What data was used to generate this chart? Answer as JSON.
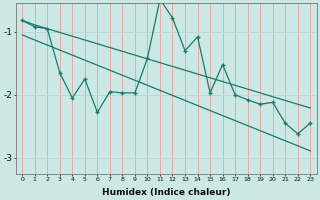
{
  "x": [
    0,
    1,
    2,
    3,
    4,
    5,
    6,
    7,
    8,
    9,
    10,
    11,
    12,
    13,
    14,
    15,
    16,
    17,
    18,
    19,
    20,
    21,
    22,
    23
  ],
  "y_main": [
    -0.82,
    -0.92,
    -0.95,
    -1.65,
    -2.05,
    -1.75,
    -2.28,
    -1.95,
    -1.97,
    -1.97,
    -1.42,
    -0.48,
    -0.78,
    -1.3,
    -1.08,
    -1.97,
    -1.52,
    -2.0,
    -2.08,
    -2.15,
    -2.12,
    -2.45,
    -2.62,
    -2.45
  ],
  "y_line1": [
    -0.82,
    -0.89,
    -0.95,
    -1.01,
    -1.07,
    -1.13,
    -1.19,
    -1.25,
    -1.31,
    -1.37,
    -1.43,
    -1.49,
    -1.55,
    -1.61,
    -1.67,
    -1.73,
    -1.79,
    -1.85,
    -1.91,
    -1.97,
    -2.03,
    -2.09,
    -2.15,
    -2.21
  ],
  "y_line2": [
    -1.05,
    -1.13,
    -1.21,
    -1.29,
    -1.37,
    -1.45,
    -1.53,
    -1.61,
    -1.69,
    -1.77,
    -1.85,
    -1.93,
    -2.01,
    -2.09,
    -2.17,
    -2.25,
    -2.33,
    -2.41,
    -2.49,
    -2.57,
    -2.65,
    -2.73,
    -2.81,
    -2.89
  ],
  "color": "#1a7a6e",
  "bg_color": "#cce8e4",
  "grid_color_v": "#e8a0a0",
  "grid_color_h": "#b8d8d4",
  "xlabel": "Humidex (Indice chaleur)",
  "ylim": [
    -3.25,
    -0.55
  ],
  "xlim": [
    -0.5,
    23.5
  ],
  "yticks": [
    -3,
    -2,
    -1
  ],
  "xticks": [
    0,
    1,
    2,
    3,
    4,
    5,
    6,
    7,
    8,
    9,
    10,
    11,
    12,
    13,
    14,
    15,
    16,
    17,
    18,
    19,
    20,
    21,
    22,
    23
  ]
}
